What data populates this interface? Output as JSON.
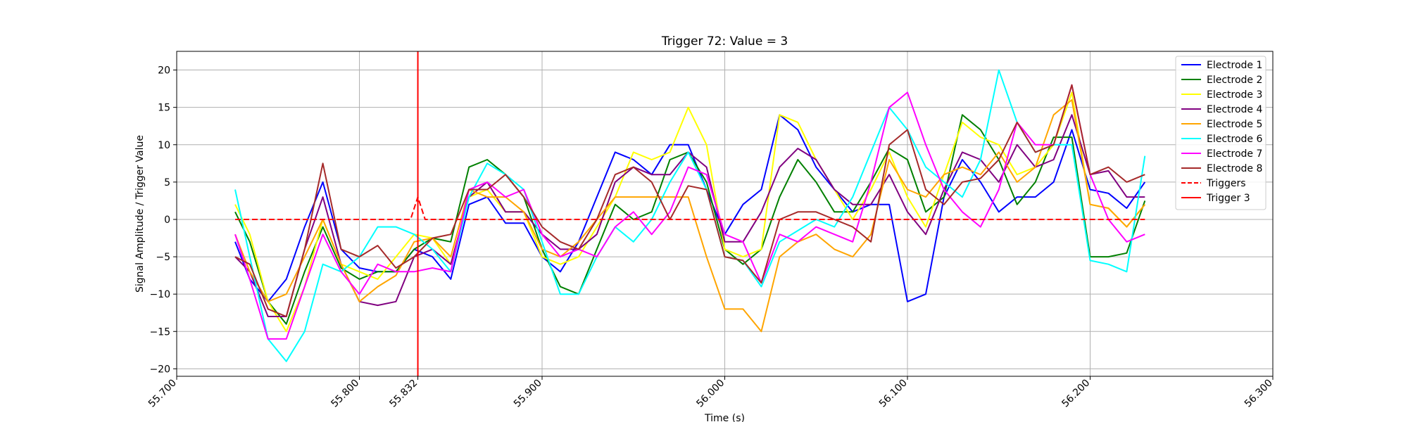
{
  "chart_data": {
    "type": "line",
    "title": "Trigger 72: Value = 3",
    "xlabel": "Time (s)",
    "ylabel": "Signal Amplitude / Trigger Value",
    "xlim": [
      55.7,
      56.3
    ],
    "ylim": [
      -21,
      22.5
    ],
    "xticks": [
      55.7,
      55.8,
      55.832,
      55.9,
      56.0,
      56.1,
      56.2,
      56.3
    ],
    "xtick_labels": [
      "55.700",
      "55.800",
      "55.832",
      "55.900",
      "56.000",
      "56.100",
      "56.200",
      "56.300"
    ],
    "yticks": [
      -20,
      -15,
      -10,
      -5,
      0,
      5,
      10,
      15,
      20
    ],
    "ytick_labels": [
      "−20",
      "−15",
      "−10",
      "−5",
      "0",
      "5",
      "10",
      "15",
      "20"
    ],
    "grid": true,
    "legend_position": "top-right",
    "x": [
      55.732,
      55.74,
      55.75,
      55.76,
      55.77,
      55.78,
      55.79,
      55.8,
      55.81,
      55.82,
      55.83,
      55.84,
      55.85,
      55.86,
      55.87,
      55.88,
      55.89,
      55.9,
      55.91,
      55.92,
      55.93,
      55.94,
      55.95,
      55.96,
      55.97,
      55.98,
      55.99,
      56.0,
      56.01,
      56.02,
      56.03,
      56.04,
      56.05,
      56.06,
      56.07,
      56.08,
      56.09,
      56.1,
      56.11,
      56.12,
      56.13,
      56.14,
      56.15,
      56.16,
      56.17,
      56.18,
      56.19,
      56.2,
      56.21,
      56.22,
      56.23
    ],
    "series": [
      {
        "name": "Electrode 1",
        "color": "#0000ff",
        "values": [
          -3,
          -8,
          -11,
          -8,
          -1,
          5,
          -4,
          -6.5,
          -7,
          -7,
          -4,
          -5,
          -8,
          2,
          3,
          -0.5,
          -0.5,
          -5,
          -7,
          -3,
          3,
          9,
          8,
          6,
          10,
          10,
          4,
          -2,
          2,
          4,
          14,
          12,
          7,
          4,
          1,
          2,
          2,
          -11,
          -10,
          3,
          8,
          5,
          1,
          3,
          3,
          5,
          12,
          4,
          3.5,
          1.5,
          5
        ]
      },
      {
        "name": "Electrode 2",
        "color": "#008000",
        "values": [
          1,
          -3,
          -11,
          -14,
          -7,
          -1,
          -6.5,
          -8,
          -7,
          -7,
          -4,
          -2.5,
          -3,
          7,
          8,
          6,
          3,
          -4,
          -9,
          -10,
          -4,
          2,
          0,
          1,
          8,
          9,
          5,
          -4,
          -6,
          -4,
          3,
          8,
          5,
          1,
          1,
          5,
          9.5,
          8,
          1,
          3,
          14,
          12,
          8,
          2,
          5,
          11,
          11,
          -5,
          -5,
          -4.5,
          2.5
        ]
      },
      {
        "name": "Electrode 3",
        "color": "#ffff00",
        "values": [
          2,
          -2,
          -11,
          -15,
          -9,
          0,
          -6,
          -7,
          -8,
          -5,
          -2,
          -2.5,
          -6,
          3,
          4,
          1,
          1,
          -5,
          -6,
          -5,
          -1,
          3,
          9,
          8,
          9,
          15,
          10,
          -4,
          -5,
          -4,
          14,
          13,
          8,
          4,
          0,
          4,
          9,
          3,
          -1,
          6,
          13,
          11,
          10,
          6,
          7,
          10,
          17,
          2,
          1.5,
          -1,
          2
        ]
      },
      {
        "name": "Electrode 4",
        "color": "#800080",
        "values": [
          -5,
          -7,
          -13,
          -13,
          -4,
          3,
          -6,
          -11,
          -11.5,
          -11,
          -5,
          -4,
          -6,
          3,
          5,
          1,
          1,
          -2,
          -4,
          -4,
          -2,
          5,
          7,
          6,
          6,
          9,
          7,
          -3,
          -3,
          1,
          7,
          9.5,
          8,
          4,
          2,
          2,
          6,
          1,
          -2,
          4,
          9,
          8,
          5,
          10,
          7,
          8,
          14,
          6,
          6.5,
          3,
          3
        ]
      },
      {
        "name": "Electrode 5",
        "color": "#ffa500",
        "values": [
          -2,
          -7,
          -11,
          -10,
          -5,
          0,
          -6,
          -11,
          -9,
          -7.5,
          -3,
          -2.5,
          -5,
          4,
          3,
          3,
          1,
          -4,
          -5,
          -3,
          0,
          3,
          3,
          3,
          3,
          3,
          -5,
          -12,
          -12,
          -15,
          -5,
          -3,
          -2,
          -4,
          -5,
          -2,
          8,
          4,
          3,
          6,
          7,
          6,
          9,
          5,
          7,
          14,
          16,
          2,
          1.5,
          -1,
          2
        ]
      },
      {
        "name": "Electrode 6",
        "color": "#00ffff",
        "values": [
          4,
          -5,
          -16,
          -19,
          -15,
          -6,
          -7,
          -5,
          -1,
          -1,
          -2,
          -4,
          -7,
          3,
          7.5,
          6,
          4,
          -3,
          -10,
          -10,
          -5,
          -1,
          -3,
          0,
          5,
          9,
          4,
          -5,
          -5.5,
          -9,
          -3,
          -1.5,
          0,
          -1,
          3,
          9,
          15,
          12,
          7,
          5,
          3,
          8,
          20,
          13,
          9,
          10,
          10,
          -5.5,
          -6,
          -7,
          8.5
        ]
      },
      {
        "name": "Electrode 7",
        "color": "#ff00ff",
        "values": [
          -2,
          -8,
          -16,
          -16,
          -9,
          -2,
          -7,
          -10,
          -6,
          -7,
          -7,
          -6.5,
          -7,
          4,
          5,
          3,
          4,
          -2,
          -5,
          -4,
          -5,
          -1,
          1,
          -2,
          1,
          7,
          6,
          -2,
          -3,
          -8.5,
          -2,
          -3,
          -1,
          -2,
          -3,
          5,
          15,
          17,
          10,
          4,
          1,
          -1,
          4,
          13,
          10,
          10,
          18,
          6,
          0,
          -3,
          -2
        ]
      },
      {
        "name": "Electrode 8",
        "color": "#a52a2a",
        "values": [
          -5,
          -6,
          -12,
          -13,
          -4,
          7.5,
          -4,
          -5,
          -3.5,
          -6.5,
          -5,
          -2.5,
          -2,
          4,
          4,
          6,
          3,
          -1,
          -3,
          -4,
          0,
          6,
          7,
          5,
          0,
          4.5,
          4,
          -5,
          -5.5,
          -8.5,
          0,
          1,
          1,
          0,
          -1,
          -3,
          10,
          12,
          4,
          2,
          5,
          5.5,
          8,
          13,
          9,
          10,
          18,
          6,
          7,
          5,
          6
        ]
      },
      {
        "name": "Triggers",
        "color": "#ff0000",
        "dashed": true,
        "points": [
          [
            55.732,
            0
          ],
          [
            55.828,
            0
          ],
          [
            55.832,
            3
          ],
          [
            55.836,
            0
          ],
          [
            56.23,
            0
          ]
        ]
      }
    ],
    "vline": {
      "name": "Trigger 3",
      "x": 55.832,
      "color": "#ff0000"
    }
  }
}
